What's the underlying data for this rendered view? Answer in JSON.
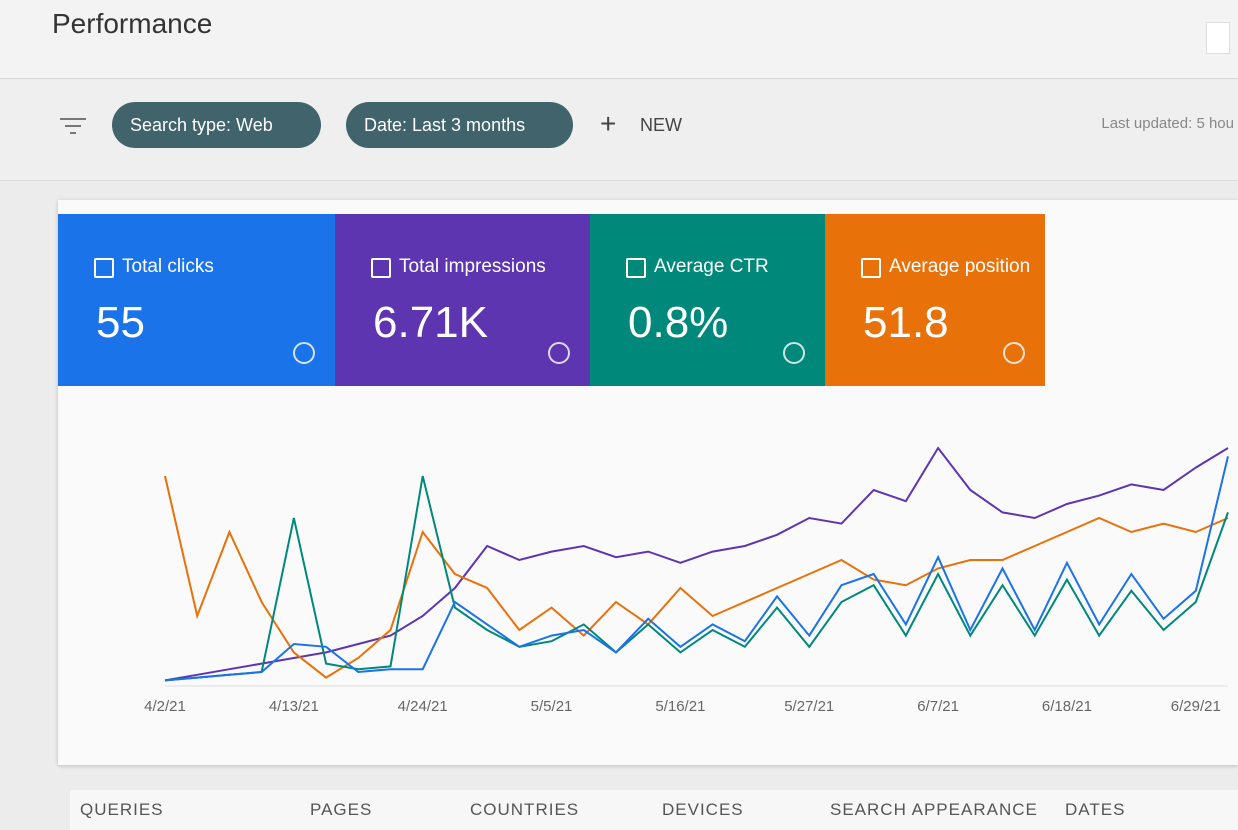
{
  "header": {
    "title": "Performance"
  },
  "filters": {
    "chips": [
      "Search type: Web",
      "Date: Last 3 months"
    ],
    "new": "NEW",
    "last_updated": "Last updated: 5 hou"
  },
  "metrics": [
    {
      "label": "Total clicks",
      "value": "55",
      "color": "#1a73e8"
    },
    {
      "label": "Total impressions",
      "value": "6.71K",
      "color": "#5e35b1"
    },
    {
      "label": "Average CTR",
      "value": "0.8%",
      "color": "#00897b"
    },
    {
      "label": "Average position",
      "value": "51.8",
      "color": "#e8710a"
    }
  ],
  "chart_data": {
    "type": "line",
    "categories": [
      "4/2/21",
      null,
      null,
      null,
      "4/13/21",
      null,
      null,
      null,
      "4/24/21",
      null,
      null,
      null,
      "5/5/21",
      null,
      null,
      null,
      "5/16/21",
      null,
      null,
      null,
      "5/27/21",
      null,
      null,
      null,
      "6/7/21",
      null,
      null,
      null,
      "6/18/21",
      null,
      null,
      null,
      "6/29/21",
      null
    ],
    "ylim": [
      0,
      100
    ],
    "series": [
      {
        "name": "Total impressions",
        "color": "#5e35b1",
        "values": [
          2,
          4,
          6,
          8,
          10,
          12,
          15,
          18,
          25,
          35,
          50,
          45,
          48,
          50,
          46,
          48,
          44,
          48,
          50,
          54,
          60,
          58,
          70,
          66,
          85,
          70,
          62,
          60,
          65,
          68,
          72,
          70,
          78,
          85
        ]
      },
      {
        "name": "Average position",
        "color": "#e8710a",
        "values": [
          75,
          25,
          55,
          30,
          12,
          3,
          10,
          20,
          55,
          40,
          35,
          20,
          28,
          18,
          30,
          22,
          35,
          25,
          30,
          35,
          40,
          45,
          38,
          36,
          42,
          45,
          45,
          50,
          55,
          60,
          55,
          58,
          55,
          60
        ]
      },
      {
        "name": "Average CTR",
        "color": "#00897b",
        "values": [
          2,
          3,
          4,
          5,
          60,
          8,
          6,
          7,
          75,
          28,
          20,
          14,
          16,
          22,
          12,
          22,
          12,
          20,
          14,
          28,
          14,
          30,
          36,
          18,
          40,
          18,
          36,
          18,
          38,
          18,
          34,
          20,
          30,
          62
        ]
      },
      {
        "name": "Total clicks",
        "color": "#1a73e8",
        "values": [
          2,
          3,
          4,
          5,
          15,
          14,
          5,
          6,
          6,
          30,
          22,
          14,
          18,
          20,
          12,
          24,
          14,
          22,
          16,
          32,
          18,
          36,
          40,
          22,
          46,
          20,
          42,
          20,
          44,
          22,
          40,
          24,
          34,
          82
        ]
      }
    ]
  },
  "tabs": [
    "QUERIES",
    "PAGES",
    "COUNTRIES",
    "DEVICES",
    "SEARCH APPEARANCE",
    "DATES"
  ]
}
